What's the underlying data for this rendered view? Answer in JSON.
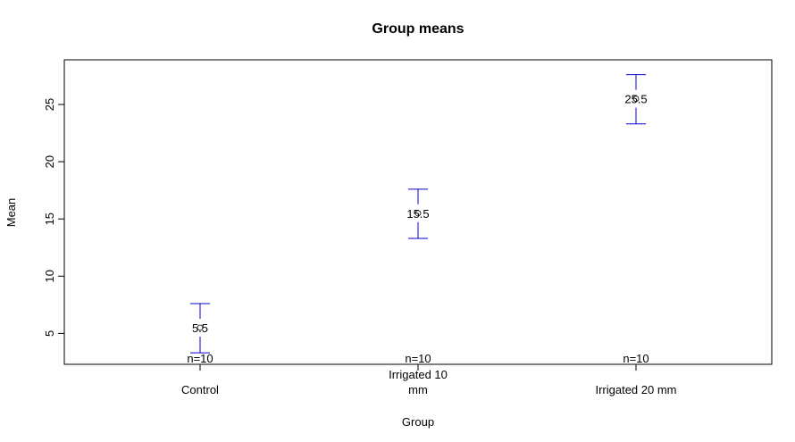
{
  "chart_data": {
    "type": "scatter",
    "title": "Group means",
    "xlabel": "Group",
    "ylabel": "Mean",
    "categories": [
      "Control",
      "Irrigated 10 mm",
      "Irrigated 20 mm"
    ],
    "category_label_lines": [
      [
        "Control"
      ],
      [
        "Irrigated 10",
        "mm"
      ],
      [
        "Irrigated 20 mm"
      ]
    ],
    "means": [
      5.5,
      15.5,
      25.5
    ],
    "mean_labels": [
      "5.5",
      "15.5",
      "25.5"
    ],
    "error_low": [
      3.3,
      13.3,
      23.3
    ],
    "error_high": [
      7.6,
      17.6,
      27.6
    ],
    "n_labels": [
      "n=10",
      "n=10",
      "n=10"
    ],
    "ylim": [
      2.3,
      28.9
    ],
    "y_ticks": [
      5,
      10,
      15,
      20,
      25
    ],
    "grid": false,
    "error_bar_color": "#0000cc"
  }
}
